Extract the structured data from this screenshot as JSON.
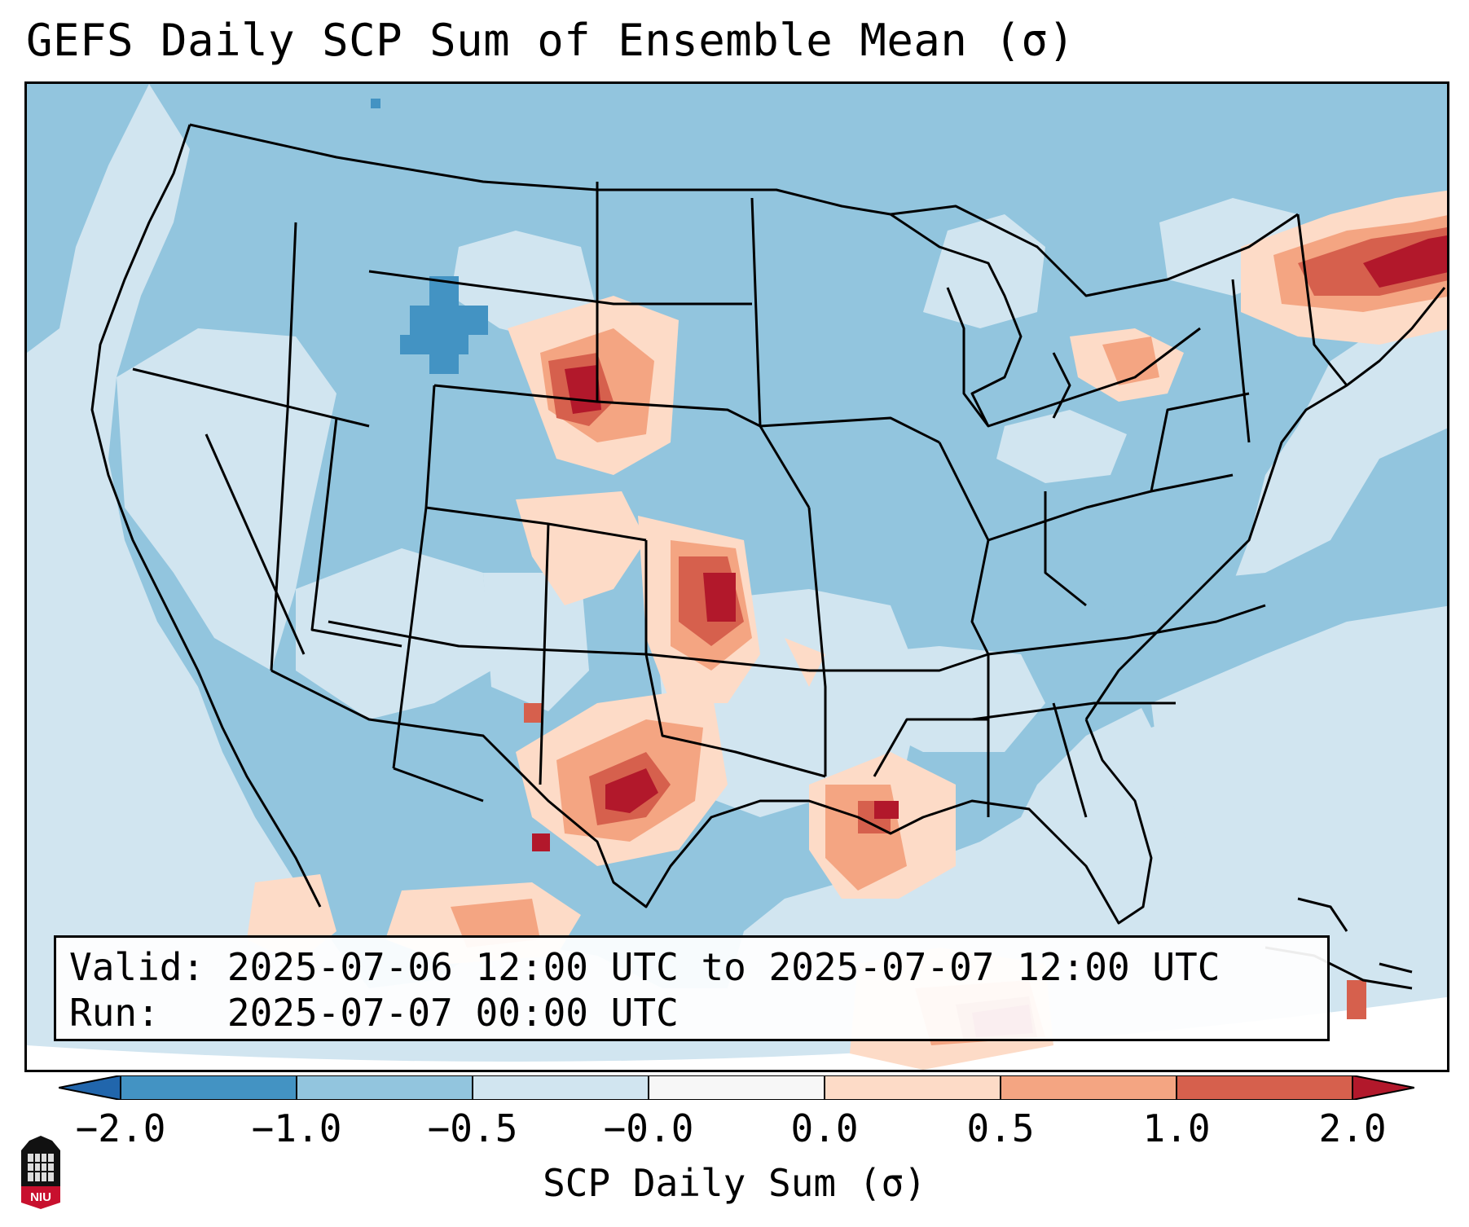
{
  "title": "GEFS Daily SCP Sum of Ensemble Mean (σ)",
  "info": {
    "valid_label": "Valid:",
    "valid_value": "2025-07-06 12:00 UTC to 2025-07-07 12:00 UTC",
    "run_label": "Run:",
    "run_value": "2025-07-07 00:00 UTC"
  },
  "colorbar": {
    "label": "SCP Daily Sum (σ)",
    "ticks": [
      "−2.0",
      "−1.0",
      "−0.5",
      "−0.0",
      "0.0",
      "0.5",
      "1.0",
      "2.0"
    ],
    "colors": [
      "#4393c3",
      "#92c5de",
      "#d1e5f0",
      "#f7f7f7",
      "#fddbc7",
      "#f4a582",
      "#d6604d",
      "#b2182b"
    ],
    "extend_low_color": "#2166ac",
    "extend_high_color": "#b2182b"
  },
  "map": {
    "region": "Continental United States",
    "background_color": "#d1e5f0",
    "land_color": "#92c5de",
    "hotspots": [
      {
        "region": "Southern Kansas / Oklahoma",
        "level": 2.0
      },
      {
        "region": "Northeast Wyoming / South Dakota",
        "level": 2.0
      },
      {
        "region": "West Texas",
        "level": 2.0
      },
      {
        "region": "Northern New England",
        "level": 2.0
      },
      {
        "region": "Louisiana",
        "level": 1.0
      },
      {
        "region": "Central Montana",
        "level": -2.0
      }
    ]
  },
  "logo": {
    "text": "NIU"
  }
}
